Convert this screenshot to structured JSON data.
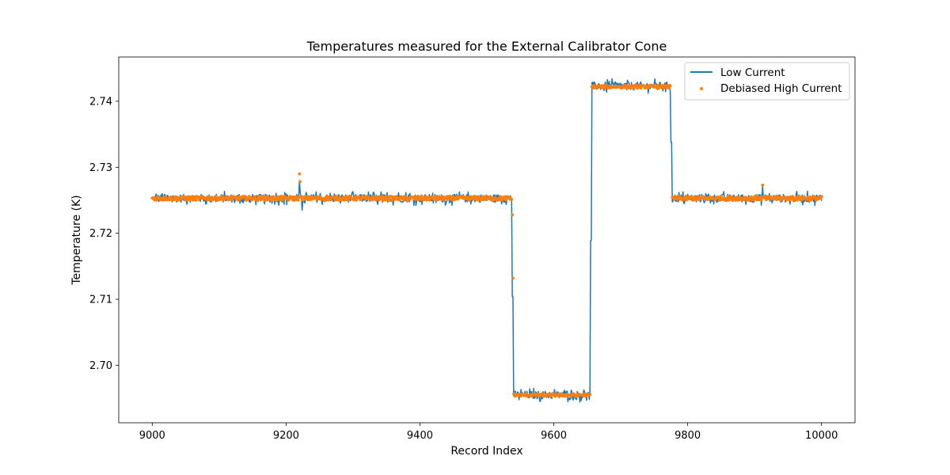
{
  "chart_data": {
    "type": "line",
    "title": "Temperatures measured for the External Calibrator Cone",
    "xlabel": "Record Index",
    "ylabel": "Temperature (K)",
    "xlim": [
      8950,
      10050
    ],
    "ylim": [
      2.6913,
      2.7467
    ],
    "xticks": [
      9000,
      9200,
      9400,
      9600,
      9800,
      10000
    ],
    "xtick_labels": [
      "9000",
      "9200",
      "9400",
      "9600",
      "9800",
      "10000"
    ],
    "yticks": [
      2.7,
      2.71,
      2.72,
      2.73,
      2.74
    ],
    "ytick_labels": [
      "2.70",
      "2.71",
      "2.72",
      "2.73",
      "2.74"
    ],
    "grid": false,
    "legend_position": "upper right",
    "series": [
      {
        "name": "Low Current",
        "style": "line",
        "color": "#1f77b4",
        "segments": [
          {
            "x_start": 9000,
            "x_end": 9537,
            "level": 2.7253,
            "noise": 0.0011
          },
          {
            "x_start": 9540,
            "x_end": 9654,
            "level": 2.6955,
            "noise": 0.0011
          },
          {
            "x_start": 9657,
            "x_end": 9774,
            "level": 2.7423,
            "noise": 0.0011
          },
          {
            "x_start": 9777,
            "x_end": 10000,
            "level": 2.7253,
            "noise": 0.0011
          }
        ],
        "features": [
          {
            "x": 9220,
            "value": 2.728
          },
          {
            "x": 9224,
            "value": 2.7235
          },
          {
            "x": 9912,
            "value": 2.7272
          }
        ]
      },
      {
        "name": "Debiased High Current",
        "style": "scatter",
        "color": "#ff7f0e",
        "segments": [
          {
            "x_start": 9000,
            "x_end": 9537,
            "level": 2.7253,
            "noise": 0.0003
          },
          {
            "x_start": 9540,
            "x_end": 9654,
            "level": 2.6955,
            "noise": 0.0002
          },
          {
            "x_start": 9657,
            "x_end": 9774,
            "level": 2.7422,
            "noise": 0.0002
          },
          {
            "x_start": 9777,
            "x_end": 10000,
            "level": 2.7253,
            "noise": 0.0003
          }
        ],
        "transition_points": [
          {
            "x": 9538,
            "value": 2.7228
          },
          {
            "x": 9539,
            "value": 2.7132
          }
        ],
        "features": [
          {
            "x": 9220,
            "value": 2.729
          },
          {
            "x": 9221,
            "value": 2.7278
          },
          {
            "x": 9912,
            "value": 2.7273
          }
        ]
      }
    ]
  },
  "colors": {
    "low_current": "#1f77b4",
    "high_current": "#ff7f0e",
    "axes": "#000000",
    "legend_border": "#cccccc"
  }
}
